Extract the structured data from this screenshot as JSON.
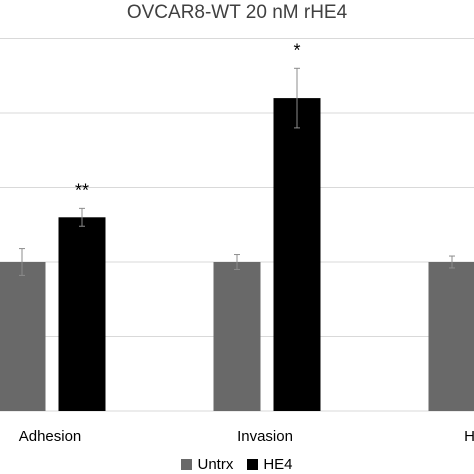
{
  "chart_data": {
    "type": "bar",
    "title": "OVCAR8-WT 20 nM rHE4",
    "xlabel": "",
    "ylabel": "",
    "categories": [
      "Adhesion",
      "Invasion",
      "Hapt"
    ],
    "series": [
      {
        "name": "Untrx",
        "color": "#696969",
        "values": [
          1.0,
          1.0,
          1.0
        ],
        "errors": [
          0.09,
          0.05,
          0.04
        ]
      },
      {
        "name": "HE4",
        "color": "#000000",
        "values": [
          1.3,
          2.1,
          null
        ],
        "errors": [
          0.06,
          0.2,
          null
        ]
      }
    ],
    "annotations": [
      "**",
      "*",
      ""
    ],
    "ylim": [
      0,
      2.5
    ],
    "grid": true,
    "legend_position": "bottom"
  }
}
